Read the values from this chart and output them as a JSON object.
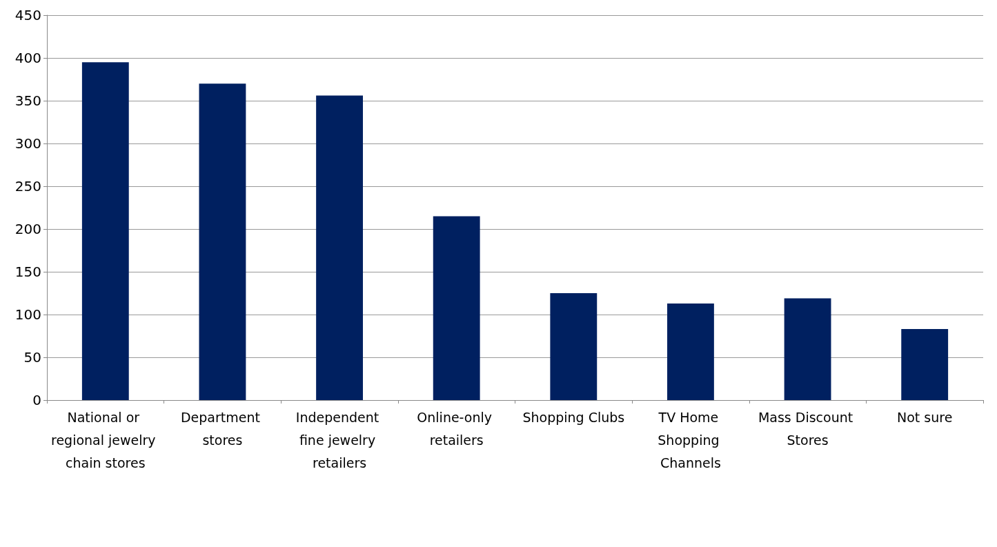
{
  "chart_data": {
    "type": "bar",
    "categories": [
      "National or regional jewelry chain stores",
      "Department stores",
      "Independent fine jewelry retailers",
      "Online-only retailers",
      "Shopping Clubs",
      "TV Home Shopping Channels",
      "Mass Discount Stores",
      "Not sure"
    ],
    "values": [
      395,
      370,
      356,
      215,
      125,
      113,
      119,
      83
    ],
    "color": "#002060",
    "ylim": [
      0,
      450
    ],
    "yticks": [
      0,
      50,
      100,
      150,
      200,
      250,
      300,
      350,
      400,
      450
    ],
    "grid": "y"
  }
}
